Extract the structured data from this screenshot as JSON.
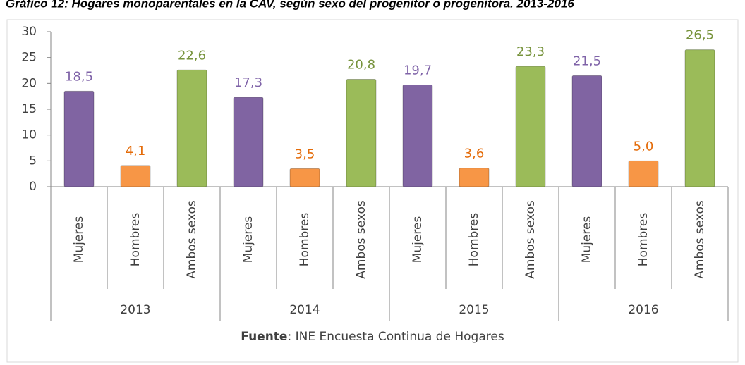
{
  "chart_data": {
    "type": "bar",
    "title": "Gráfico 12: Hogares monoparentales en la CAV, según sexo del progenitor o progenitora. 2013-2016",
    "categories": [
      "Mujeres",
      "Hombres",
      "Ambos sexos",
      "Mujeres",
      "Hombres",
      "Ambos sexos",
      "Mujeres",
      "Hombres",
      "Ambos sexos",
      "Mujeres",
      "Hombres",
      "Ambos sexos"
    ],
    "groups": [
      "2013",
      "2014",
      "2015",
      "2016"
    ],
    "values": [
      18.5,
      4.1,
      22.6,
      17.3,
      3.5,
      20.8,
      19.7,
      3.6,
      23.3,
      21.5,
      5.0,
      26.5
    ],
    "value_labels": [
      "18,5",
      "4,1",
      "22,6",
      "17,3",
      "3,5",
      "20,8",
      "19,7",
      "3,6",
      "23,3",
      "21,5",
      "5,0",
      "26,5"
    ],
    "colors": [
      "#8064a2",
      "#f79646",
      "#9bbb59"
    ],
    "label_colors": [
      "#7f63a8",
      "#e46c0a",
      "#77933c"
    ],
    "ylim": [
      0,
      30
    ],
    "yticks": [
      0,
      5,
      10,
      15,
      20,
      25,
      30
    ],
    "source": {
      "label": "Fuente",
      "text": ": INE Encuesta Continua de Hogares"
    }
  }
}
